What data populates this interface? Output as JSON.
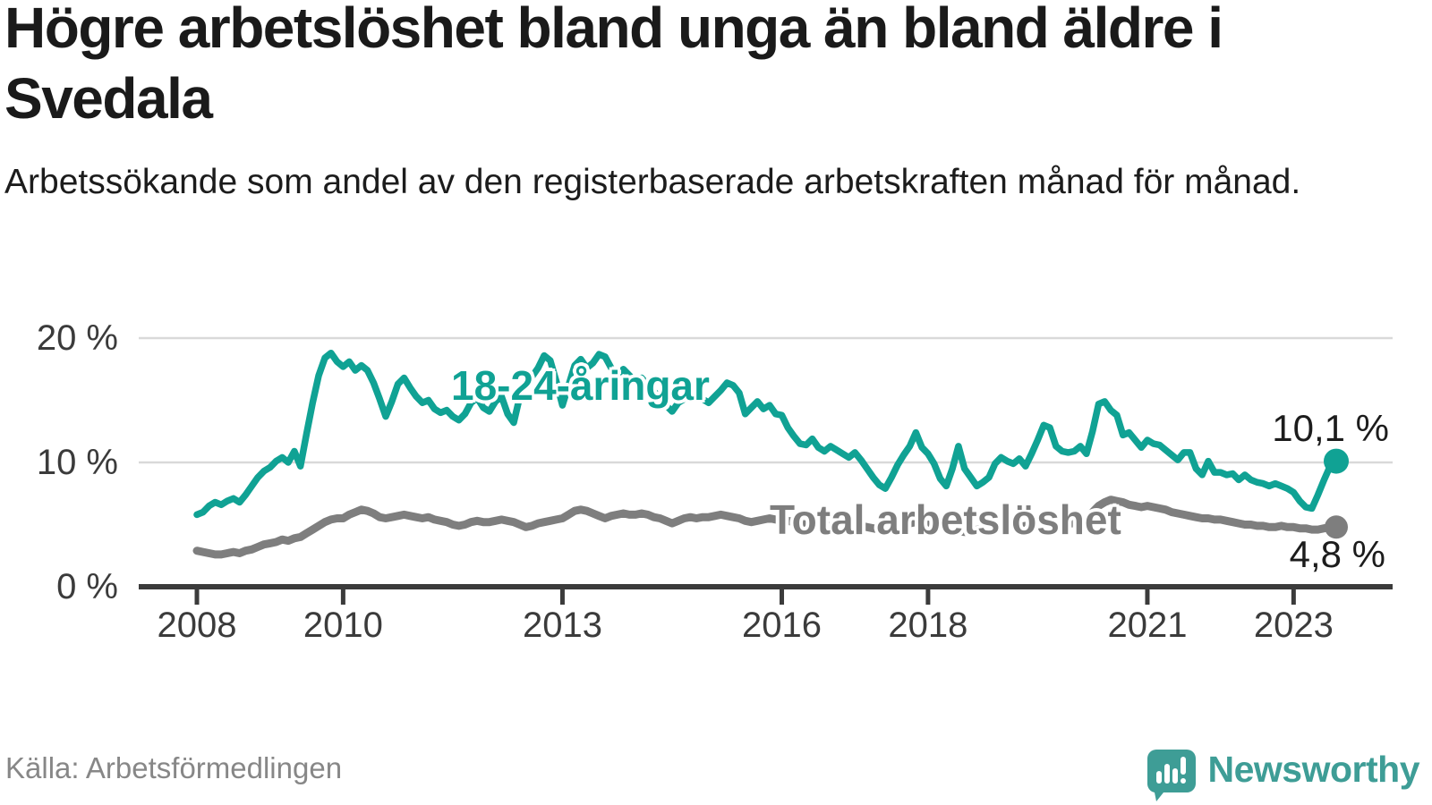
{
  "title": "Högre arbetslöshet bland unga än bland äldre i Svedala",
  "subtitle": "Arbetssökande som andel av den registerbaserade arbetskraften månad för månad.",
  "source": "Källa: Arbetsförmedlingen",
  "logo": {
    "text": "Newsworthy"
  },
  "colors": {
    "youth_line": "#10a294",
    "total_line": "#7e7e7e",
    "grid": "#d9d9d9",
    "axis": "#3b3b3b",
    "tick_text": "#3b3b3b",
    "annotation_text": "#1c1c1c",
    "logo_teal": "#3e9d96"
  },
  "chart_data": {
    "type": "line",
    "title": "Högre arbetslöshet bland unga än bland äldre i Svedala",
    "subtitle": "Arbetssökande som andel av den registerbaserade arbetskraften månad för månad.",
    "x_unit": "month",
    "x_start": "2008-01",
    "x_end": "2023-08",
    "ylim": [
      0,
      20
    ],
    "grid": "horizontal",
    "y_ticks": [
      0,
      10,
      20
    ],
    "y_tick_labels": [
      "0 %",
      "10 %",
      "20 %"
    ],
    "x_tick_years": [
      2008,
      2010,
      2013,
      2016,
      2018,
      2021,
      2023
    ],
    "x_tick_labels": [
      "2008",
      "2010",
      "2013",
      "2016",
      "2018",
      "2021",
      "2023"
    ],
    "series": [
      {
        "name": "18-24-åringar",
        "end_label": "10,1 %",
        "end_value": 10.1,
        "color": "#10a294",
        "values": [
          5.8,
          6.0,
          6.5,
          6.8,
          6.6,
          6.9,
          7.1,
          6.8,
          7.4,
          8.1,
          8.8,
          9.3,
          9.6,
          10.1,
          10.4,
          10.0,
          10.9,
          9.7,
          12.3,
          14.8,
          17.0,
          18.4,
          18.8,
          18.1,
          17.7,
          18.1,
          17.4,
          17.8,
          17.4,
          16.4,
          15.1,
          13.7,
          14.9,
          16.3,
          16.8,
          16.0,
          15.3,
          14.8,
          15.0,
          14.3,
          14.0,
          14.2,
          13.7,
          13.4,
          13.9,
          14.8,
          15.2,
          14.4,
          14.1,
          14.9,
          15.3,
          13.9,
          13.2,
          15.3,
          16.1,
          16.9,
          17.6,
          18.6,
          18.2,
          16.5,
          14.6,
          16.2,
          17.8,
          18.3,
          17.6,
          18.0,
          18.7,
          18.5,
          17.6,
          17.1,
          17.5,
          17.0,
          16.5,
          16.8,
          16.2,
          15.7,
          15.2,
          14.6,
          14.1,
          14.8,
          15.1,
          15.6,
          15.5,
          15.1,
          14.8,
          15.3,
          15.8,
          16.4,
          16.2,
          15.6,
          13.9,
          14.4,
          14.9,
          14.3,
          14.6,
          13.9,
          13.8,
          12.8,
          12.1,
          11.5,
          11.4,
          11.9,
          11.2,
          10.9,
          11.3,
          11.0,
          10.7,
          10.4,
          10.8,
          10.2,
          9.5,
          8.8,
          8.2,
          7.9,
          8.8,
          9.8,
          10.6,
          11.3,
          12.4,
          11.2,
          10.7,
          9.9,
          8.7,
          8.1,
          9.5,
          11.3,
          9.5,
          8.8,
          8.1,
          8.4,
          8.8,
          9.9,
          10.4,
          10.1,
          9.9,
          10.3,
          9.7,
          10.7,
          11.8,
          13.0,
          12.8,
          11.3,
          10.9,
          10.8,
          10.9,
          11.3,
          10.7,
          12.5,
          14.7,
          14.9,
          14.2,
          13.8,
          12.2,
          12.4,
          11.8,
          11.2,
          11.8,
          11.5,
          11.4,
          11.0,
          10.6,
          10.2,
          10.8,
          10.8,
          9.5,
          9.0,
          10.1,
          9.2,
          9.2,
          9.0,
          9.1,
          8.6,
          9.0,
          8.6,
          8.4,
          8.3,
          8.1,
          8.3,
          8.1,
          7.9,
          7.6,
          6.9,
          6.4,
          6.3,
          7.4,
          8.6,
          9.7,
          10.1
        ]
      },
      {
        "name": "Total arbetslöshet",
        "end_label": "4,8 %",
        "end_value": 4.8,
        "color": "#7e7e7e",
        "values": [
          2.9,
          2.8,
          2.7,
          2.6,
          2.6,
          2.7,
          2.8,
          2.7,
          2.9,
          3.0,
          3.2,
          3.4,
          3.5,
          3.6,
          3.8,
          3.7,
          3.9,
          4.0,
          4.3,
          4.6,
          4.9,
          5.2,
          5.4,
          5.5,
          5.5,
          5.8,
          6.0,
          6.2,
          6.1,
          5.9,
          5.6,
          5.5,
          5.6,
          5.7,
          5.8,
          5.7,
          5.6,
          5.5,
          5.6,
          5.4,
          5.3,
          5.2,
          5.0,
          4.9,
          5.0,
          5.2,
          5.3,
          5.2,
          5.2,
          5.3,
          5.4,
          5.3,
          5.2,
          5.0,
          4.8,
          4.9,
          5.1,
          5.2,
          5.3,
          5.4,
          5.5,
          5.8,
          6.1,
          6.2,
          6.1,
          5.9,
          5.7,
          5.5,
          5.7,
          5.8,
          5.9,
          5.8,
          5.8,
          5.9,
          5.8,
          5.6,
          5.5,
          5.3,
          5.1,
          5.3,
          5.5,
          5.6,
          5.5,
          5.6,
          5.6,
          5.7,
          5.8,
          5.7,
          5.6,
          5.5,
          5.3,
          5.2,
          5.3,
          5.4,
          5.5,
          5.4,
          5.4,
          5.3,
          5.2,
          5.1,
          5.0,
          5.1,
          4.9,
          4.8,
          4.9,
          5.0,
          5.1,
          5.0,
          5.0,
          4.9,
          4.8,
          4.7,
          4.6,
          4.5,
          4.6,
          4.8,
          5.0,
          5.1,
          5.2,
          5.1,
          5.0,
          4.9,
          4.8,
          4.7,
          4.6,
          4.5,
          4.4,
          4.5,
          4.6,
          4.7,
          4.8,
          4.7,
          4.7,
          4.6,
          4.7,
          4.8,
          4.9,
          4.8,
          5.0,
          4.9,
          4.8,
          4.9,
          5.0,
          5.1,
          5.1,
          5.2,
          5.4,
          6.0,
          6.5,
          6.8,
          7.0,
          6.9,
          6.8,
          6.6,
          6.5,
          6.4,
          6.5,
          6.4,
          6.3,
          6.2,
          6.0,
          5.9,
          5.8,
          5.7,
          5.6,
          5.5,
          5.5,
          5.4,
          5.4,
          5.3,
          5.2,
          5.1,
          5.0,
          5.0,
          4.9,
          4.9,
          4.8,
          4.8,
          4.9,
          4.8,
          4.8,
          4.7,
          4.7,
          4.6,
          4.6,
          4.7,
          4.8,
          4.8
        ]
      }
    ]
  }
}
